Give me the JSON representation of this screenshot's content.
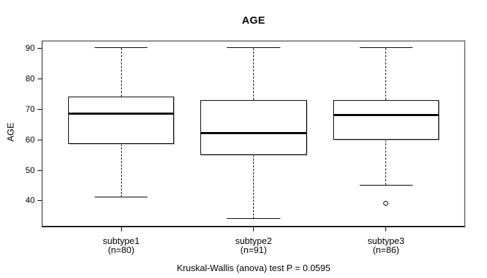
{
  "title": "AGE",
  "y_axis": {
    "label": "AGE",
    "ticks": [
      40,
      50,
      60,
      70,
      80,
      90
    ]
  },
  "footer": "Kruskal-Wallis (anova) test P = 0.0595",
  "chart_data": {
    "type": "boxplot",
    "title": "AGE",
    "xlabel": "",
    "ylabel": "AGE",
    "ylim": [
      31.2,
      92.5
    ],
    "yticks": [
      40,
      50,
      60,
      70,
      80,
      90
    ],
    "grid": false,
    "categories": [
      "subtype1",
      "subtype2",
      "subtype3"
    ],
    "category_sublabels": [
      "(n=80)",
      "(n=91)",
      "(n=86)"
    ],
    "series": [
      {
        "name": "subtype1",
        "n": 80,
        "whisker_low": 41,
        "q1": 58.5,
        "median": 68.5,
        "q3": 74,
        "whisker_high": 90,
        "outliers": []
      },
      {
        "name": "subtype2",
        "n": 91,
        "whisker_low": 34,
        "q1": 55,
        "median": 62,
        "q3": 73,
        "whisker_high": 90,
        "outliers": []
      },
      {
        "name": "subtype3",
        "n": 86,
        "whisker_low": 45,
        "q1": 60,
        "median": 68,
        "q3": 73,
        "whisker_high": 90,
        "outliers": [
          39
        ]
      }
    ],
    "annotation": "Kruskal-Wallis (anova) test P = 0.0595"
  }
}
